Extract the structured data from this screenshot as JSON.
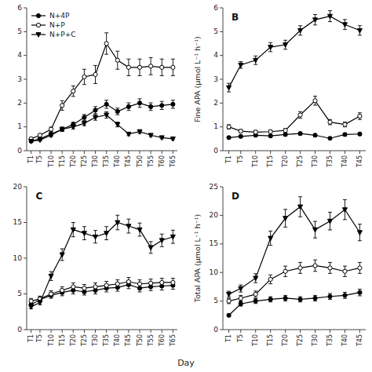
{
  "chart_data": [
    {
      "type": "line",
      "legend": "upper left",
      "x": [
        1,
        5,
        10,
        15,
        20,
        25,
        30,
        35,
        40,
        45,
        50,
        55,
        60,
        65
      ],
      "xlim": [
        -1,
        67
      ],
      "xticks": [
        {
          "value": 1,
          "label": "T1"
        },
        {
          "value": 5,
          "label": "T5"
        },
        {
          "value": 10,
          "label": "T10"
        },
        {
          "value": 15,
          "label": "T15"
        },
        {
          "value": 20,
          "label": "T20"
        },
        {
          "value": 25,
          "label": "T25"
        },
        {
          "value": 30,
          "label": "T30"
        },
        {
          "value": 35,
          "label": "T35"
        },
        {
          "value": 40,
          "label": "T40"
        },
        {
          "value": 45,
          "label": "T45"
        },
        {
          "value": 50,
          "label": "T50"
        },
        {
          "value": 55,
          "label": "T55"
        },
        {
          "value": 60,
          "label": "T60"
        },
        {
          "value": 65,
          "label": "T65"
        }
      ],
      "ylim": [
        0,
        6
      ],
      "yticks": [
        0,
        1,
        2,
        3,
        4,
        5,
        6
      ],
      "series": [
        {
          "name": "N+4P",
          "color": "#000000",
          "marker": "circle",
          "values": [
            0.4,
            0.5,
            0.7,
            0.9,
            1.1,
            1.4,
            1.7,
            1.95,
            1.65,
            1.85,
            2.0,
            1.85,
            1.9,
            1.95
          ],
          "errors": [
            0.05,
            0.05,
            0.07,
            0.09,
            0.1,
            0.12,
            0.15,
            0.17,
            0.14,
            0.16,
            0.18,
            0.16,
            0.17,
            0.17
          ]
        },
        {
          "name": "N+P",
          "color": "#000000",
          "marker": "open-circle",
          "values": [
            0.5,
            0.65,
            0.9,
            1.9,
            2.5,
            3.1,
            3.2,
            4.5,
            3.8,
            3.5,
            3.5,
            3.55,
            3.5,
            3.5
          ],
          "errors": [
            0.05,
            0.06,
            0.09,
            0.2,
            0.22,
            0.32,
            0.38,
            0.45,
            0.38,
            0.35,
            0.35,
            0.36,
            0.35,
            0.35
          ]
        },
        {
          "name": "N+P+C",
          "color": "#000000",
          "marker": "triangle-down",
          "values": [
            0.4,
            0.45,
            0.65,
            0.9,
            1.0,
            1.15,
            1.4,
            1.5,
            1.1,
            0.7,
            0.8,
            0.65,
            0.55,
            0.5
          ],
          "errors": [
            0.04,
            0.04,
            0.06,
            0.08,
            0.09,
            0.1,
            0.12,
            0.13,
            0.1,
            0.07,
            0.08,
            0.06,
            0.05,
            0.04
          ]
        }
      ]
    },
    {
      "type": "line",
      "title": "B",
      "ylabel": "Fine APA (μmol L⁻¹ h⁻¹)",
      "x": [
        1,
        5,
        10,
        15,
        20,
        25,
        30,
        35,
        40,
        45
      ],
      "xlim": [
        -1,
        47
      ],
      "xticks": [
        {
          "value": 1,
          "label": "T1"
        },
        {
          "value": 5,
          "label": "T5"
        },
        {
          "value": 10,
          "label": "T10"
        },
        {
          "value": 15,
          "label": "T15"
        },
        {
          "value": 20,
          "label": "T20"
        },
        {
          "value": 25,
          "label": "T25"
        },
        {
          "value": 30,
          "label": "T30"
        },
        {
          "value": 35,
          "label": "T35"
        },
        {
          "value": 40,
          "label": "T40"
        },
        {
          "value": 45,
          "label": "T45"
        }
      ],
      "ylim": [
        0,
        6
      ],
      "yticks": [
        0,
        1,
        2,
        3,
        4,
        5,
        6
      ],
      "series": [
        {
          "name": "N+4P",
          "color": "#000000",
          "marker": "circle",
          "values": [
            0.55,
            0.6,
            0.65,
            0.62,
            0.68,
            0.72,
            0.65,
            0.52,
            0.68,
            0.7
          ],
          "errors": [
            0.05,
            0.05,
            0.06,
            0.05,
            0.06,
            0.06,
            0.06,
            0.04,
            0.06,
            0.06
          ]
        },
        {
          "name": "N+P",
          "color": "#000000",
          "marker": "open-circle",
          "values": [
            1.0,
            0.82,
            0.78,
            0.8,
            0.85,
            1.5,
            2.1,
            1.2,
            1.1,
            1.45
          ],
          "errors": [
            0.09,
            0.07,
            0.07,
            0.07,
            0.08,
            0.14,
            0.19,
            0.11,
            0.1,
            0.14
          ]
        },
        {
          "name": "N+P+C",
          "color": "#000000",
          "marker": "triangle-down",
          "values": [
            2.65,
            3.6,
            3.8,
            4.35,
            4.45,
            5.05,
            5.5,
            5.65,
            5.3,
            5.05
          ],
          "errors": [
            0.18,
            0.14,
            0.18,
            0.19,
            0.19,
            0.2,
            0.22,
            0.23,
            0.21,
            0.2
          ]
        }
      ]
    },
    {
      "type": "line",
      "title": "C",
      "x": [
        1,
        5,
        10,
        15,
        20,
        25,
        30,
        35,
        40,
        45,
        50,
        55,
        60,
        65
      ],
      "xlim": [
        -1,
        67
      ],
      "xticks": [
        {
          "value": 1,
          "label": "T1"
        },
        {
          "value": 5,
          "label": "T5"
        },
        {
          "value": 10,
          "label": "T10"
        },
        {
          "value": 15,
          "label": "T15"
        },
        {
          "value": 20,
          "label": "T20"
        },
        {
          "value": 25,
          "label": "T25"
        },
        {
          "value": 30,
          "label": "T30"
        },
        {
          "value": 35,
          "label": "T35"
        },
        {
          "value": 40,
          "label": "T40"
        },
        {
          "value": 45,
          "label": "T45"
        },
        {
          "value": 50,
          "label": "T50"
        },
        {
          "value": 55,
          "label": "T55"
        },
        {
          "value": 60,
          "label": "T60"
        },
        {
          "value": 65,
          "label": "T65"
        }
      ],
      "ylim": [
        0,
        20
      ],
      "yticks": [
        0,
        5,
        10,
        15,
        20
      ],
      "series": [
        {
          "name": "N+4P",
          "color": "#000000",
          "marker": "circle",
          "values": [
            3.5,
            4.2,
            4.8,
            5.2,
            5.5,
            5.3,
            5.5,
            5.8,
            5.9,
            6.3,
            5.8,
            6.0,
            6.1,
            6.2
          ],
          "errors": [
            0.3,
            0.36,
            0.42,
            0.46,
            0.5,
            0.46,
            0.5,
            0.52,
            0.52,
            0.56,
            0.52,
            0.54,
            0.55,
            0.55
          ]
        },
        {
          "name": "N+P",
          "color": "#000000",
          "marker": "open-circle",
          "values": [
            4.0,
            4.3,
            5.0,
            5.5,
            6.0,
            5.8,
            6.0,
            6.2,
            6.4,
            6.7,
            6.4,
            6.5,
            6.6,
            6.6
          ],
          "errors": [
            0.36,
            0.39,
            0.44,
            0.5,
            0.54,
            0.52,
            0.54,
            0.56,
            0.57,
            0.6,
            0.57,
            0.58,
            0.59,
            0.59
          ]
        },
        {
          "name": "N+P+C",
          "color": "#000000",
          "marker": "triangle-down",
          "values": [
            3.2,
            3.8,
            7.5,
            10.5,
            14.0,
            13.5,
            13.0,
            13.5,
            15.0,
            14.5,
            14.0,
            11.5,
            12.5,
            13.0
          ],
          "errors": [
            0.28,
            0.32,
            0.62,
            0.82,
            1.0,
            0.92,
            0.88,
            0.92,
            1.02,
            0.98,
            0.92,
            0.82,
            0.88,
            0.92
          ]
        }
      ]
    },
    {
      "type": "line",
      "title": "D",
      "ylabel": "Total APA (μmol L⁻¹ h⁻¹)",
      "x": [
        1,
        5,
        10,
        15,
        20,
        25,
        30,
        35,
        40,
        45
      ],
      "xlim": [
        -1,
        47
      ],
      "xticks": [
        {
          "value": 1,
          "label": "T1"
        },
        {
          "value": 5,
          "label": "T5"
        },
        {
          "value": 10,
          "label": "T10"
        },
        {
          "value": 15,
          "label": "T15"
        },
        {
          "value": 20,
          "label": "T20"
        },
        {
          "value": 25,
          "label": "T25"
        },
        {
          "value": 30,
          "label": "T30"
        },
        {
          "value": 35,
          "label": "T35"
        },
        {
          "value": 40,
          "label": "T40"
        },
        {
          "value": 45,
          "label": "T45"
        }
      ],
      "ylim": [
        0,
        25
      ],
      "yticks": [
        0,
        5,
        10,
        15,
        20,
        25
      ],
      "series": [
        {
          "name": "N+4P",
          "color": "#000000",
          "marker": "circle",
          "values": [
            2.5,
            4.5,
            5.0,
            5.3,
            5.5,
            5.3,
            5.5,
            5.8,
            6.0,
            6.5
          ],
          "errors": [
            0.22,
            0.38,
            0.43,
            0.46,
            0.49,
            0.46,
            0.49,
            0.52,
            0.54,
            0.58
          ]
        },
        {
          "name": "N+P",
          "color": "#000000",
          "marker": "open-circle",
          "values": [
            5.0,
            5.5,
            6.2,
            8.8,
            10.2,
            10.8,
            11.2,
            10.8,
            10.2,
            10.8
          ],
          "errors": [
            0.45,
            0.49,
            0.55,
            0.78,
            0.92,
            0.96,
            1.0,
            0.96,
            0.92,
            0.96
          ]
        },
        {
          "name": "N+P+C",
          "color": "#000000",
          "marker": "triangle-down",
          "values": [
            6.2,
            7.2,
            9.0,
            16.0,
            19.5,
            21.5,
            17.5,
            19.0,
            21.0,
            17.0
          ],
          "errors": [
            0.52,
            0.62,
            0.78,
            1.25,
            1.55,
            1.75,
            1.45,
            1.55,
            1.75,
            1.45
          ]
        }
      ]
    }
  ],
  "xlabel": "Day"
}
